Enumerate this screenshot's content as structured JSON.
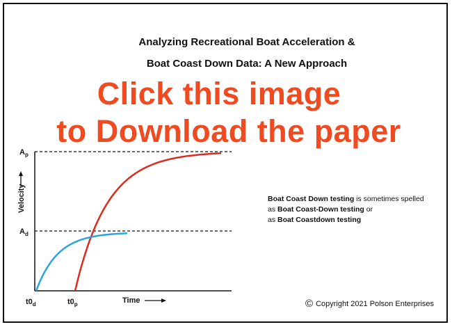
{
  "header": {
    "title_line1": "Analyzing Recreational Boat Acceleration &",
    "title_line2": "Boat Coast Down Data: A New Approach"
  },
  "overlay": {
    "line1": "Click this image",
    "line2": "to Download the paper"
  },
  "note": {
    "p1_bold": "Boat Coast Down testing",
    "p1_rest": " is sometimes spelled",
    "p2_pre": "as ",
    "p2_bold": "Boat Coast-Down testing",
    "p2_post": " or",
    "p3_pre": "as ",
    "p3_bold": "Boat Coastdown testing"
  },
  "copyright": {
    "symbol": "©",
    "text": "Copyright 2021 Polson Enterprises"
  },
  "colors": {
    "overlay": "#f04a21",
    "curve_acceleration": "#dd2a1c",
    "curve_coastdown": "#2aa3e0"
  },
  "chart_data": {
    "type": "line",
    "xlabel": "Time",
    "ylabel": "Velocity",
    "x_ticks": [
      {
        "main": "t0",
        "sub": "d"
      },
      {
        "main": "t0",
        "sub": "p"
      }
    ],
    "y_ticks": [
      {
        "main": "A",
        "sub": "p"
      },
      {
        "main": "A",
        "sub": "d"
      }
    ],
    "series": [
      {
        "kind": "acceleration",
        "start_tick": "t0p",
        "asymptote_tick": "Ap",
        "color": "#dd2a1c"
      },
      {
        "kind": "coastdown",
        "start_tick": "t0d",
        "asymptote_tick": "Ad",
        "color": "#2aa3e0"
      }
    ]
  }
}
